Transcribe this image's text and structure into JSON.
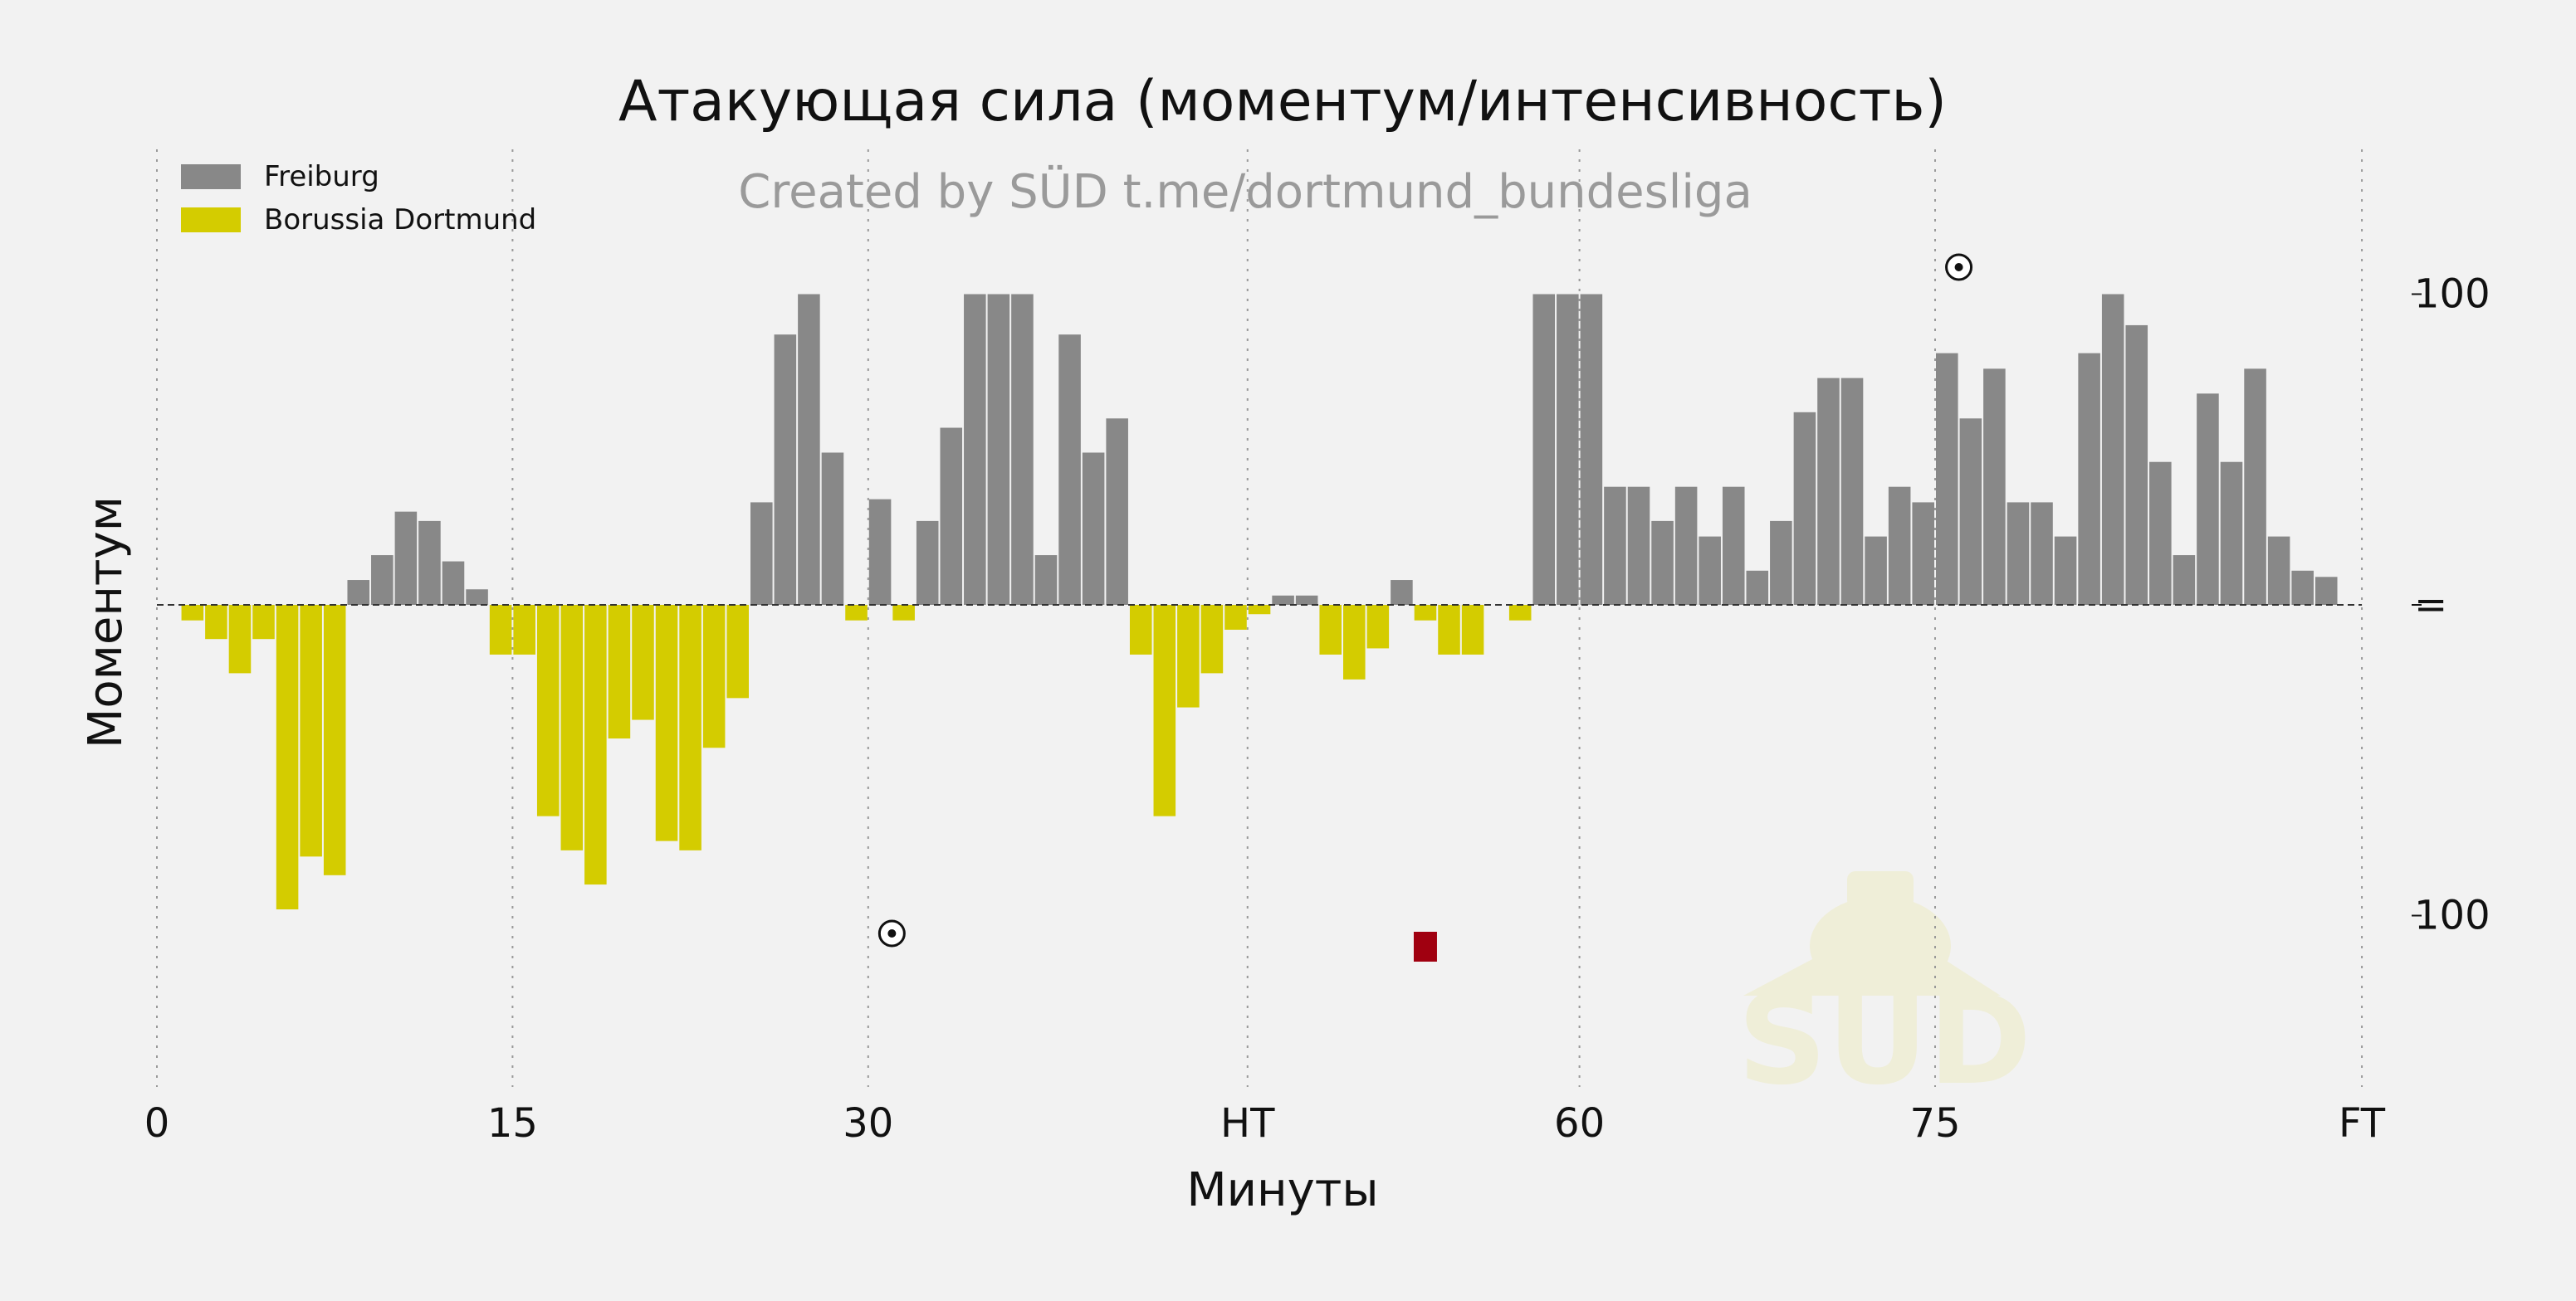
{
  "chart_data": {
    "type": "bar",
    "title": "Атакующая сила (моментум/интенсивность)",
    "subtitle": "Created by SÜD t.me/dortmund_bundesliga",
    "xlabel": "Минуты",
    "ylabel": "Моментум",
    "x_ticks": [
      {
        "x": 0,
        "label": "0"
      },
      {
        "x": 15,
        "label": "15"
      },
      {
        "x": 30,
        "label": "30"
      },
      {
        "x": 46,
        "label": "HT"
      },
      {
        "x": 60,
        "label": "60"
      },
      {
        "x": 75,
        "label": "75"
      },
      {
        "x": 93,
        "label": "FT"
      }
    ],
    "y_ticks": [
      {
        "y": 100,
        "label": "100"
      },
      {
        "y": 0,
        "label": "="
      },
      {
        "y": -100,
        "label": "100"
      }
    ],
    "xlim": [
      -1,
      94
    ],
    "ylim": [
      -160,
      150
    ],
    "grid": "vertical dotted lines at x ticks",
    "legend_position": "top-left",
    "series": [
      {
        "name": "Freiburg",
        "color": "#888888"
      },
      {
        "name": "Borussia Dortmund",
        "color": "#d4cc00"
      }
    ],
    "values": [
      0,
      -5,
      -11,
      -22,
      -11,
      -98,
      -81,
      -87,
      8,
      16,
      30,
      27,
      14,
      5,
      -16,
      -16,
      -68,
      -79,
      -90,
      -43,
      -37,
      -76,
      -79,
      -46,
      -30,
      33,
      87,
      100,
      49,
      -5,
      34,
      -5,
      27,
      57,
      100,
      100,
      100,
      16,
      87,
      49,
      60,
      -16,
      -68,
      -33,
      -22,
      -8,
      -3,
      3,
      3,
      -16,
      -24,
      -14,
      8,
      -5,
      -16,
      -16,
      0,
      -5,
      100,
      100,
      100,
      38,
      38,
      27,
      38,
      22,
      38,
      11,
      27,
      62,
      73,
      73,
      22,
      38,
      33,
      81,
      60,
      76,
      33,
      33,
      22,
      81,
      100,
      90,
      46,
      16,
      68,
      46,
      76,
      22,
      11,
      9
    ],
    "events": [
      {
        "type": "goal",
        "icon": "soccer-ball-icon",
        "minute": 31,
        "team": "Borussia Dortmund",
        "symbol": "⚽"
      },
      {
        "type": "red-card",
        "icon": "red-card-icon",
        "minute": 53.5,
        "team": "Borussia Dortmund",
        "color": "#a00010"
      },
      {
        "type": "goal",
        "icon": "soccer-ball-icon",
        "minute": 76,
        "team": "Freiburg",
        "symbol": "⚽"
      }
    ],
    "watermark": {
      "text": "SÜD",
      "icon": "owl-logo-icon",
      "color": "#efeed8"
    }
  }
}
